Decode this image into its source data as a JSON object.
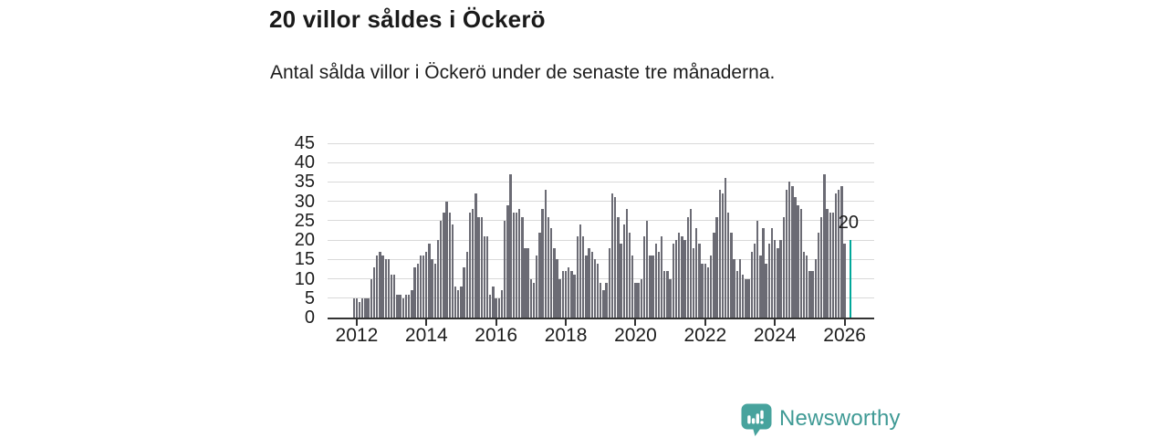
{
  "chart": {
    "title": "20 villor såldes i Öckerö",
    "subtitle": "Antal sålda villor i Öckerö under de senaste tre månaderna."
  },
  "chart_data": {
    "type": "bar",
    "title": "20 villor såldes i Öckerö",
    "subtitle": "Antal sålda villor i Öckerö under de senaste tre månaderna.",
    "xlabel": "",
    "ylabel": "",
    "ylim": [
      0,
      45
    ],
    "grid": true,
    "y_ticks": [
      0,
      5,
      10,
      15,
      20,
      25,
      30,
      35,
      40,
      45
    ],
    "x_tick_labels": [
      "2012",
      "2014",
      "2016",
      "2018",
      "2020",
      "2022",
      "2024",
      "2026"
    ],
    "x_tick_slots": [
      1,
      25,
      49,
      73,
      97,
      121,
      145,
      169
    ],
    "values": [
      5,
      5,
      4,
      5,
      5,
      5,
      10,
      13,
      16,
      17,
      16,
      15,
      15,
      11,
      11,
      6,
      6,
      5,
      6,
      6,
      7,
      13,
      14,
      16,
      16,
      17,
      19,
      15,
      14,
      20,
      25,
      27,
      30,
      27,
      24,
      8,
      7,
      8,
      13,
      17,
      27,
      28,
      32,
      26,
      26,
      21,
      21,
      6,
      8,
      5,
      5,
      7,
      25,
      29,
      37,
      27,
      27,
      28,
      26,
      18,
      18,
      10,
      9,
      16,
      22,
      28,
      33,
      26,
      23,
      18,
      15,
      10,
      12,
      12,
      13,
      12,
      11,
      21,
      24,
      21,
      16,
      18,
      17,
      15,
      14,
      9,
      7,
      9,
      18,
      32,
      31,
      26,
      19,
      24,
      28,
      22,
      16,
      9,
      9,
      10,
      21,
      25,
      16,
      16,
      19,
      17,
      21,
      12,
      12,
      10,
      19,
      20,
      22,
      21,
      20,
      26,
      28,
      18,
      23,
      19,
      14,
      14,
      13,
      16,
      22,
      26,
      33,
      32,
      36,
      27,
      22,
      15,
      12,
      15,
      11,
      10,
      10,
      17,
      19,
      25,
      16,
      23,
      14,
      19,
      23,
      20,
      18,
      20,
      26,
      33,
      35,
      34,
      31,
      29,
      28,
      17,
      16,
      12,
      12,
      15,
      22,
      26,
      37,
      28,
      27,
      27,
      32,
      33,
      34,
      19
    ],
    "highlight": {
      "slot": 171,
      "value": 20,
      "label": "20",
      "color": "#00a79a"
    },
    "bar_color": "#6b6b74",
    "gridline_color": "#d9d9d9",
    "axis_color": "#333333",
    "legend": "none"
  },
  "footer": {
    "brand": "Newsworthy",
    "brand_color": "#3f9a95",
    "logo_color": "#47a39d",
    "logo_icon": "bar-chart-speech-bubble"
  }
}
